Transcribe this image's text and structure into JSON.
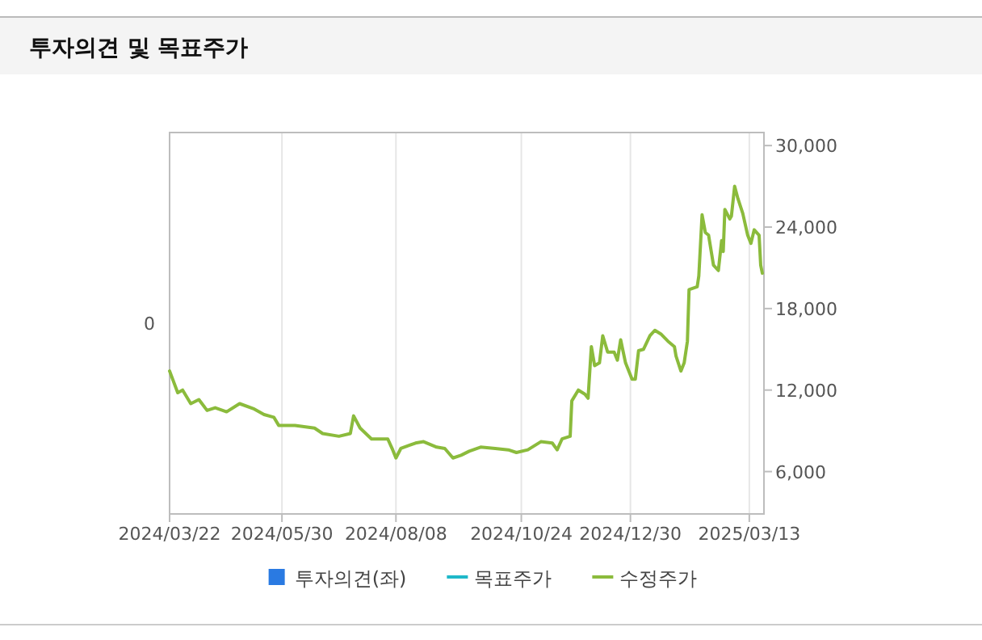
{
  "chart_data": {
    "type": "line",
    "title": "투자의견 및 목표주가",
    "xlim": [
      "2024-03-22",
      "2025-03-22"
    ],
    "xticks": [
      {
        "value": "2024-03-22",
        "label": "2024/03/22"
      },
      {
        "value": "2024-05-30",
        "label": "2024/05/30"
      },
      {
        "value": "2024-08-08",
        "label": "2024/08/08"
      },
      {
        "value": "2024-10-24",
        "label": "2024/10/24"
      },
      {
        "value": "2024-12-30",
        "label": "2024/12/30"
      },
      {
        "value": "2025-03-13",
        "label": "2025/03/13"
      }
    ],
    "annotations": [
      "0"
    ],
    "y2lim": [
      2880,
      30960
    ],
    "y2ticks": [
      {
        "value": 6000,
        "label": "6,000"
      },
      {
        "value": 12000,
        "label": "12,000"
      },
      {
        "value": 18000,
        "label": "18,000"
      },
      {
        "value": 24000,
        "label": "24,000"
      },
      {
        "value": 30000,
        "label": "30,000"
      }
    ],
    "grid": "x",
    "legend": "bottom",
    "series": [
      {
        "name": "투자의견(좌)",
        "type": "bar",
        "color": "#2a7ae2"
      },
      {
        "name": "목표주가",
        "type": "line",
        "color": "#1fb8c9"
      },
      {
        "name": "수정주가",
        "axis": "y2",
        "color": "#8bbb3c",
        "x": [
          "2024-03-22",
          "2024-03-27",
          "2024-03-30",
          "2024-04-04",
          "2024-04-09",
          "2024-04-14",
          "2024-04-19",
          "2024-04-26",
          "2024-05-04",
          "2024-05-13",
          "2024-05-19",
          "2024-05-25",
          "2024-05-28",
          "2024-06-07",
          "2024-06-19",
          "2024-06-24",
          "2024-07-04",
          "2024-07-11",
          "2024-07-13",
          "2024-07-17",
          "2024-07-24",
          "2024-08-03",
          "2024-08-06",
          "2024-08-08",
          "2024-08-11",
          "2024-08-20",
          "2024-08-25",
          "2024-09-02",
          "2024-09-07",
          "2024-09-12",
          "2024-09-17",
          "2024-09-22",
          "2024-09-29",
          "2024-10-08",
          "2024-10-16",
          "2024-10-21",
          "2024-10-28",
          "2024-11-05",
          "2024-11-12",
          "2024-11-15",
          "2024-11-18",
          "2024-11-23",
          "2024-11-24",
          "2024-11-28",
          "2024-12-02",
          "2024-12-04",
          "2024-12-06",
          "2024-12-08",
          "2024-12-11",
          "2024-12-13",
          "2024-12-16",
          "2024-12-20",
          "2024-12-22",
          "2024-12-24",
          "2024-12-27",
          "2024-12-31",
          "2025-01-02",
          "2025-01-04",
          "2025-01-07",
          "2025-01-11",
          "2025-01-14",
          "2025-01-18",
          "2025-01-22",
          "2025-01-26",
          "2025-01-27",
          "2025-01-30",
          "2025-02-01",
          "2025-02-03",
          "2025-02-04",
          "2025-02-09",
          "2025-02-10",
          "2025-02-12",
          "2025-02-14",
          "2025-02-16",
          "2025-02-19",
          "2025-02-22",
          "2025-02-24",
          "2025-02-25",
          "2025-02-26",
          "2025-03-01",
          "2025-03-02",
          "2025-03-04",
          "2025-03-06",
          "2025-03-09",
          "2025-03-12",
          "2025-03-14",
          "2025-03-16",
          "2025-03-19",
          "2025-03-20",
          "2025-03-21"
        ],
        "values": [
          13400,
          11800,
          12000,
          11000,
          11300,
          10500,
          10700,
          10400,
          11000,
          10600,
          10200,
          10000,
          9400,
          9400,
          9200,
          8800,
          8600,
          8800,
          10100,
          9200,
          8400,
          8400,
          7600,
          7000,
          7700,
          8100,
          8200,
          7800,
          7700,
          7000,
          7200,
          7500,
          7800,
          7700,
          7600,
          7400,
          7600,
          8200,
          8100,
          7600,
          8400,
          8600,
          11200,
          12000,
          11700,
          11400,
          15200,
          13800,
          14000,
          16000,
          14800,
          14800,
          14200,
          15700,
          14000,
          12800,
          12800,
          14900,
          15000,
          16000,
          16400,
          16100,
          15600,
          15200,
          14500,
          13400,
          14000,
          15600,
          19400,
          19600,
          20400,
          24900,
          23600,
          23400,
          21200,
          20800,
          23000,
          22200,
          25300,
          24600,
          24800,
          27000,
          26100,
          25000,
          23400,
          22800,
          23800,
          23400,
          21200,
          20600
        ]
      }
    ]
  }
}
